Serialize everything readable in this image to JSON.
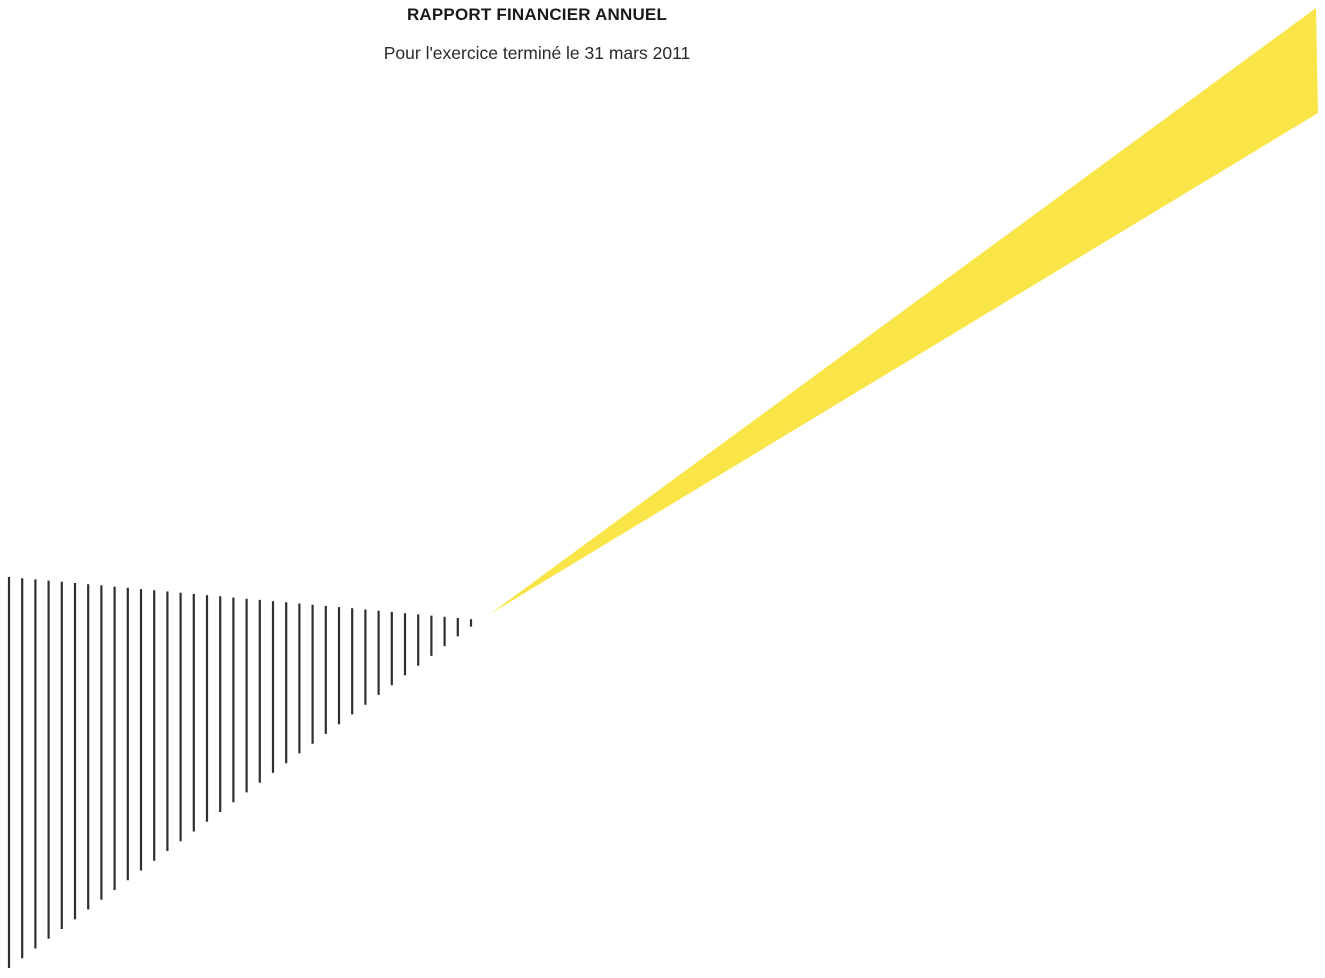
{
  "document": {
    "title": "RAPPORT FINANCIER ANNUEL",
    "subtitle": "Pour l'exercice terminé le 31 mars 2011"
  },
  "colors": {
    "accent_yellow": "#F9E547",
    "stripe_dark": "#2f2f2f",
    "background": "#ffffff"
  },
  "graphics": {
    "beam": "yellow-beam",
    "stripes": "striped-triangle"
  }
}
